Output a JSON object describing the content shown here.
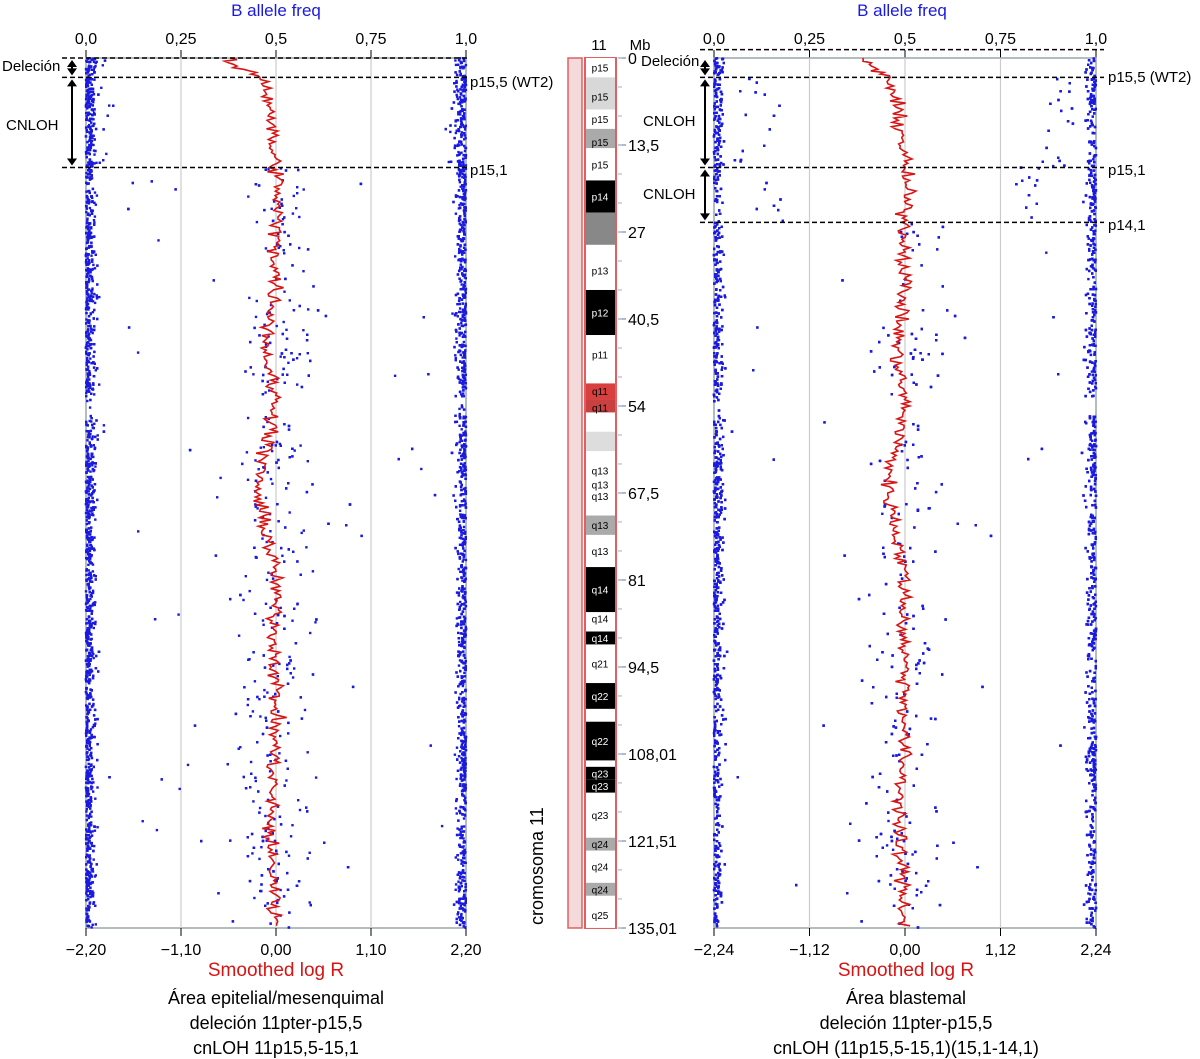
{
  "figure": {
    "left_panel": {
      "top_axis_title": "B allele freq",
      "top_ticks": [
        "0,0",
        "0,25",
        "0,5",
        "0,75",
        "1,0"
      ],
      "bottom_ticks": [
        "−2,20",
        "−1,10",
        "0,00",
        "1,10",
        "2,20"
      ],
      "bottom_axis_title": "Smoothed log R",
      "caption": [
        "Área epitelial/mesenquimal",
        "deleción 11pter-p15,5",
        "cnLOH 11p15,5-15,1"
      ],
      "left_labels": [
        "Deleción",
        "CNLOH"
      ],
      "right_labels": [
        "p15,5 (WT2)",
        "p15,1"
      ]
    },
    "right_panel": {
      "top_axis_title": "B allele freq",
      "top_ticks": [
        "0,0",
        "0,25",
        "0,5",
        "0,75",
        "1,0"
      ],
      "bottom_ticks": [
        "−2,24",
        "−1,12",
        "0,00",
        "1,12",
        "2,24"
      ],
      "bottom_axis_title": "Smoothed log R",
      "caption": [
        "Área blastemal",
        "deleción 11pter-p15,5",
        "cnLOH (11p15,5-15,1)(15,1-14,1)"
      ],
      "inner_labels": [
        "Deleción",
        "CNLOH",
        "CNLOH"
      ],
      "right_labels": [
        "p15,5 (WT2)",
        "p15,1",
        "p14,1"
      ]
    },
    "ideogram": {
      "chromosome_number": "11",
      "mb_label": "Mb",
      "mb_ticks": [
        "0",
        "13,5",
        "27",
        "40,5",
        "54",
        "67,5",
        "81",
        "94,5",
        "108,01",
        "121,51",
        "135,01"
      ],
      "side_label": "cromosoma 11",
      "bands": [
        "p15",
        "p15",
        "p15",
        "p15",
        "p15",
        "p14",
        "p13",
        "p12",
        "p11",
        "q11",
        "q11",
        "q13",
        "q13",
        "q13",
        "q13",
        "q13",
        "q14",
        "q14",
        "q14",
        "q21",
        "q22",
        "q22",
        "q23",
        "q23",
        "q23",
        "q24",
        "q24",
        "q24",
        "q25"
      ]
    }
  },
  "chart_data": [
    {
      "type": "scatter",
      "title": "",
      "subtitle": "",
      "caption": "Área epitelial/mesenquimal / deleción 11pter-p15,5 / cnLOH 11p15,5-15,1",
      "x_top_label": "B allele freq",
      "x_top_range": [
        0.0,
        1.0
      ],
      "x_bottom_label": "Smoothed log R",
      "x_bottom_range": [
        -2.2,
        2.2
      ],
      "y_label": "Mb",
      "y_range": [
        0,
        135.01
      ],
      "grid": true,
      "series": [
        {
          "name": "B allele freq",
          "color": "#1a1adf",
          "description": "homozygous points at 0 and 1 along the full chromosome; heterozygous points around 0.5 except in regions 0–3 Mb and 3–17 Mb"
        },
        {
          "name": "Smoothed log R",
          "color": "#d81414",
          "y": [
            0,
            1.5,
            3,
            5,
            8,
            11,
            14,
            17,
            20,
            27,
            35,
            40.5,
            45,
            50,
            54,
            58,
            62,
            67.5,
            70,
            75,
            81,
            88,
            94.5,
            100,
            108.01,
            115,
            121.51,
            128,
            135.01
          ],
          "x": [
            -0.6,
            -0.45,
            -0.15,
            -0.1,
            -0.05,
            -0.05,
            -0.05,
            0.0,
            0.02,
            0.0,
            0.0,
            -0.05,
            -0.12,
            -0.05,
            0.0,
            -0.05,
            -0.15,
            -0.22,
            -0.18,
            -0.08,
            0.0,
            -0.02,
            0.0,
            0.0,
            -0.02,
            -0.05,
            -0.08,
            -0.02,
            0.0
          ]
        }
      ],
      "annotations": [
        {
          "text": "Deleción",
          "y_from": 0,
          "y_to": 3
        },
        {
          "text": "CNLOH",
          "y_from": 3,
          "y_to": 17
        },
        {
          "text": "p15,5 (WT2)",
          "y": 3
        },
        {
          "text": "p15,1",
          "y": 17
        }
      ]
    },
    {
      "type": "scatter",
      "title": "",
      "subtitle": "",
      "caption": "Área blastemal / deleción 11pter-p15,5 / cnLOH (11p15,5-15,1)(15,1-14,1)",
      "x_top_label": "B allele freq",
      "x_top_range": [
        0.0,
        1.0
      ],
      "x_bottom_label": "Smoothed log R",
      "x_bottom_range": [
        -2.24,
        2.24
      ],
      "y_label": "Mb",
      "y_range": [
        0,
        135.01
      ],
      "grid": true,
      "series": [
        {
          "name": "B allele freq",
          "color": "#1a1adf",
          "description": "homozygous points at 0 and 1 along the full chromosome; split bands near 0.1/0.9 and 0.15/0.85 in regions 3–17 Mb and 17–25.5 Mb"
        },
        {
          "name": "Smoothed log R",
          "color": "#d81414",
          "y": [
            0,
            1.5,
            3,
            5,
            8,
            11,
            14,
            17,
            20,
            25.5,
            35,
            40.5,
            45,
            50,
            54,
            58,
            62,
            67.5,
            70,
            75,
            81,
            88,
            94.5,
            100,
            108.01,
            115,
            121.51,
            128,
            135.01
          ],
          "x": [
            -0.5,
            -0.4,
            -0.2,
            -0.15,
            -0.1,
            -0.05,
            -0.02,
            0.0,
            0.02,
            0.0,
            0.0,
            -0.05,
            -0.1,
            -0.05,
            0.0,
            -0.05,
            -0.15,
            -0.2,
            -0.15,
            -0.08,
            0.0,
            -0.02,
            0.0,
            0.0,
            -0.02,
            -0.05,
            -0.08,
            -0.02,
            0.0
          ]
        }
      ],
      "annotations": [
        {
          "text": "Deleción",
          "y_from": 0,
          "y_to": 3
        },
        {
          "text": "CNLOH",
          "y_from": 3,
          "y_to": 17
        },
        {
          "text": "CNLOH",
          "y_from": 17,
          "y_to": 25.5
        },
        {
          "text": "p15,5 (WT2)",
          "y": 3
        },
        {
          "text": "p15,1",
          "y": 17
        },
        {
          "text": "p14,1",
          "y": 25.5
        }
      ]
    }
  ]
}
